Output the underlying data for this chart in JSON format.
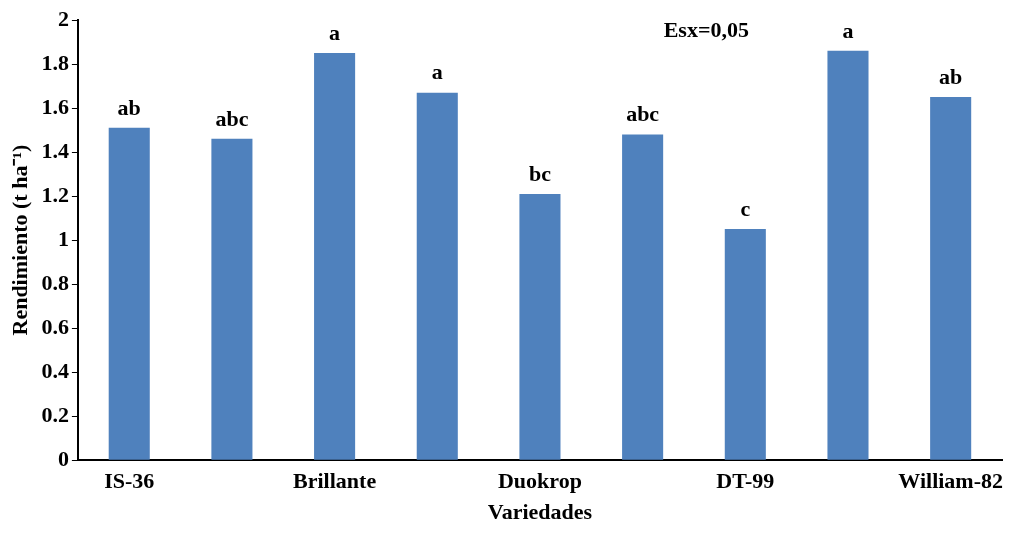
{
  "chart_data": {
    "type": "bar",
    "xlabel": "Variedades",
    "ylabel": "Rendimiento (t ha⁻¹)",
    "categories": [
      "IS-36",
      null,
      "Brillante",
      null,
      "Duokrop",
      null,
      "DT-99",
      null,
      "William-82"
    ],
    "values": [
      1.51,
      1.46,
      1.85,
      1.67,
      1.21,
      1.48,
      1.05,
      1.86,
      1.65
    ],
    "value_labels": [
      "ab",
      "abc",
      "a",
      "a",
      "bc",
      "abc",
      "c",
      "a",
      "ab"
    ],
    "color": "#4f81bd",
    "ylim": [
      0,
      2
    ],
    "yticks": [
      0,
      0.2,
      0.4,
      0.6,
      0.8,
      1,
      1.2,
      1.4,
      1.6,
      1.8,
      2
    ],
    "grid": false,
    "legend": false,
    "annotations": [
      "Esx=0,05"
    ]
  }
}
